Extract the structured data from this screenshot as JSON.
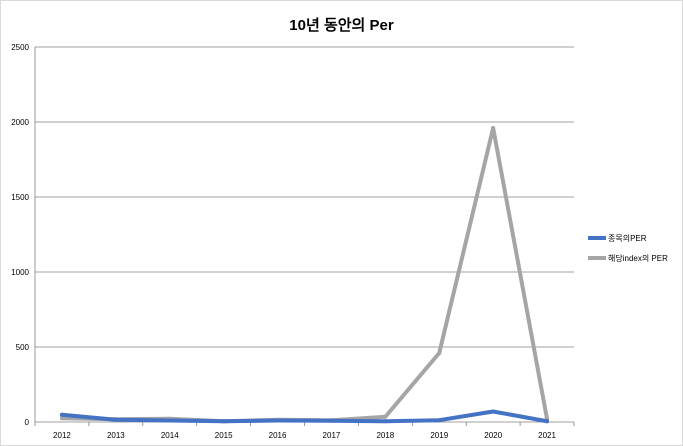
{
  "chart_data": {
    "type": "line",
    "title": "10년 동안의 Per",
    "xlabel": "",
    "ylabel": "",
    "categories": [
      "2012",
      "2013",
      "2014",
      "2015",
      "2016",
      "2017",
      "2018",
      "2019",
      "2020",
      "2021"
    ],
    "series": [
      {
        "name": "종목의PER",
        "color": "#4472C4",
        "values": [
          48,
          15,
          10,
          5,
          10,
          8,
          5,
          12,
          70,
          5
        ]
      },
      {
        "name": "해당index의  PER",
        "color": "#A5A5A5",
        "values": [
          25,
          18,
          22,
          5,
          15,
          12,
          35,
          460,
          1960,
          20
        ]
      }
    ],
    "ylim": [
      0,
      2500
    ],
    "yticks": [
      0,
      500,
      1000,
      1500,
      2000,
      2500
    ],
    "grid": true,
    "legend_position": "right"
  }
}
